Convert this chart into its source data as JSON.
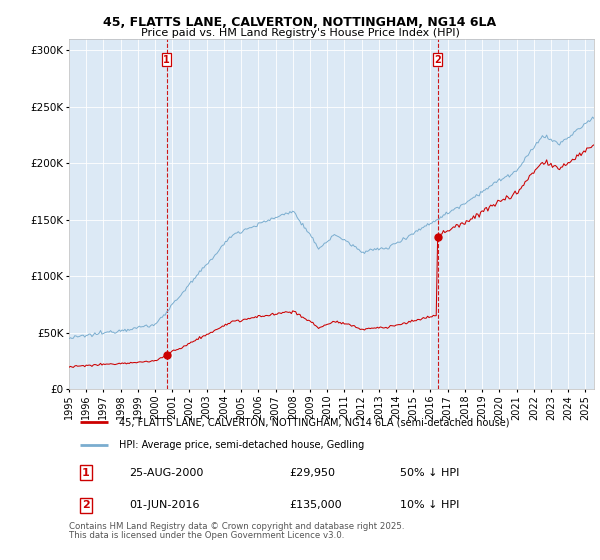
{
  "title_line1": "45, FLATTS LANE, CALVERTON, NOTTINGHAM, NG14 6LA",
  "title_line2": "Price paid vs. HM Land Registry's House Price Index (HPI)",
  "legend_label_red": "45, FLATTS LANE, CALVERTON, NOTTINGHAM, NG14 6LA (semi-detached house)",
  "legend_label_blue": "HPI: Average price, semi-detached house, Gedling",
  "annotation1_date": "25-AUG-2000",
  "annotation1_price": "£29,950",
  "annotation1_hpi": "50% ↓ HPI",
  "annotation2_date": "01-JUN-2016",
  "annotation2_price": "£135,000",
  "annotation2_hpi": "10% ↓ HPI",
  "footnote_line1": "Contains HM Land Registry data © Crown copyright and database right 2025.",
  "footnote_line2": "This data is licensed under the Open Government Licence v3.0.",
  "outer_bg_color": "#ffffff",
  "plot_bg_color": "#dce9f5",
  "red_color": "#cc0000",
  "blue_color": "#7aadcf",
  "ylim_max": 310000,
  "yticks": [
    0,
    50000,
    100000,
    150000,
    200000,
    250000,
    300000
  ],
  "purchase1_year": 2000.646,
  "purchase1_value": 29950,
  "purchase2_year": 2016.416,
  "purchase2_value": 135000,
  "xstart_year": 1995,
  "xend_year": 2025.5
}
